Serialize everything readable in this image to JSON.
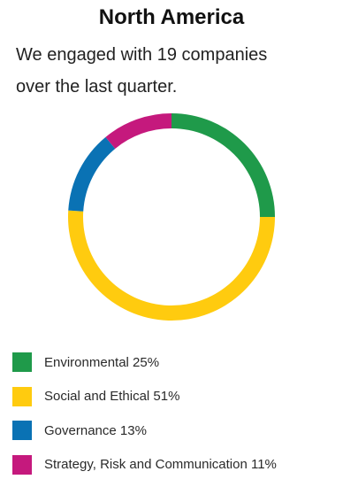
{
  "header": {
    "title": "North America",
    "subtitle_line1": "We engaged with 19 companies",
    "subtitle_line2": "over the last quarter."
  },
  "chart_data": {
    "type": "pie",
    "style": "donut",
    "title": "North America",
    "slices": [
      {
        "name": "Environmental",
        "value": 25,
        "color": "#1f9a4a"
      },
      {
        "name": "Social and Ethical",
        "value": 51,
        "color": "#ffcb0f"
      },
      {
        "name": "Governance",
        "value": 13,
        "color": "#0a72b4"
      },
      {
        "name": "Strategy, Risk and Communication",
        "value": 11,
        "color": "#c5197d"
      }
    ]
  },
  "legend": [
    {
      "label": "Environmental 25%",
      "color": "#1f9a4a"
    },
    {
      "label": "Social and Ethical 51%",
      "color": "#ffcb0f"
    },
    {
      "label": "Governance 13%",
      "color": "#0a72b4"
    },
    {
      "label": "Strategy, Risk and Communication 11%",
      "color": "#c5197d"
    }
  ]
}
